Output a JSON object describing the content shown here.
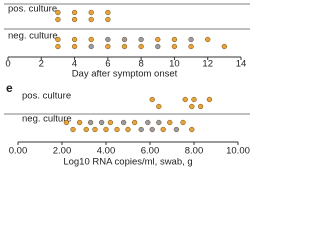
{
  "chart_data": [
    {
      "type": "strip",
      "xlabel": "Day after symptom onset",
      "xlim": [
        0,
        14
      ],
      "xticks": [
        0,
        2,
        4,
        6,
        8,
        10,
        12,
        14
      ],
      "series": [
        {
          "name": "pos. culture",
          "values": [
            3,
            3,
            4,
            4,
            5,
            5,
            6,
            6
          ],
          "colors": [
            "#e8a33a",
            "#e8a33a",
            "#e8a33a",
            "#e8a33a",
            "#e8a33a",
            "#e8a33a",
            "#e8a33a",
            "#e8a33a"
          ]
        },
        {
          "name": "neg. culture",
          "values": [
            3,
            3,
            4,
            4,
            5,
            5,
            6,
            6,
            7,
            7,
            8,
            8,
            9,
            9,
            10,
            10,
            11,
            11,
            12,
            13
          ],
          "colors": [
            "#e8a33a",
            "#e8a33a",
            "#e8a33a",
            "#e8a33a",
            "#e8a33a",
            "#9a9aa8",
            "#9a9aa8",
            "#e8a33a",
            "#9a9aa8",
            "#e8a33a",
            "#9a9aa8",
            "#e8a33a",
            "#e8a33a",
            "#9a9aa8",
            "#e8a33a",
            "#e8a33a",
            "#9a9aa8",
            "#e8a33a",
            "#e8a33a",
            "#e8a33a"
          ]
        }
      ]
    },
    {
      "type": "strip",
      "label": "e",
      "xlabel": "Log10 RNA copies/ml, swab, g",
      "xlim": [
        0,
        10
      ],
      "xticks": [
        {
          "value": 0,
          "label": "0.00"
        },
        {
          "value": 2,
          "label": "2.00"
        },
        {
          "value": 4,
          "label": "4.00"
        },
        {
          "value": 6,
          "label": "6.00"
        },
        {
          "value": 8,
          "label": "8.00"
        },
        {
          "value": 10,
          "label": "10.00"
        }
      ],
      "series": [
        {
          "name": "pos. culture",
          "values": [
            6.1,
            6.4,
            7.6,
            7.9,
            8.0,
            8.3,
            8.7
          ],
          "colors": [
            "#e8a33a",
            "#e8a33a",
            "#e8a33a",
            "#e8a33a",
            "#e8a33a",
            "#e8a33a",
            "#e8a33a"
          ]
        },
        {
          "name": "neg. culture",
          "values": [
            2.2,
            2.5,
            2.8,
            3.1,
            3.3,
            3.5,
            3.8,
            4.0,
            4.2,
            4.5,
            4.8,
            5.0,
            5.3,
            5.6,
            5.9,
            6.1,
            6.4,
            6.6,
            6.9,
            7.2,
            7.5,
            7.9
          ],
          "colors": [
            "#e8a33a",
            "#e8a33a",
            "#e8a33a",
            "#e8a33a",
            "#9a9aa8",
            "#e8a33a",
            "#9a9aa8",
            "#e8a33a",
            "#e8a33a",
            "#e8a33a",
            "#9a9aa8",
            "#e8a33a",
            "#e8a33a",
            "#9a9aa8",
            "#9a9aa8",
            "#9a9aa8",
            "#9a9aa8",
            "#e8a33a",
            "#e8a33a",
            "#9a9aa8",
            "#e8a33a",
            "#e8a33a"
          ]
        }
      ]
    }
  ]
}
